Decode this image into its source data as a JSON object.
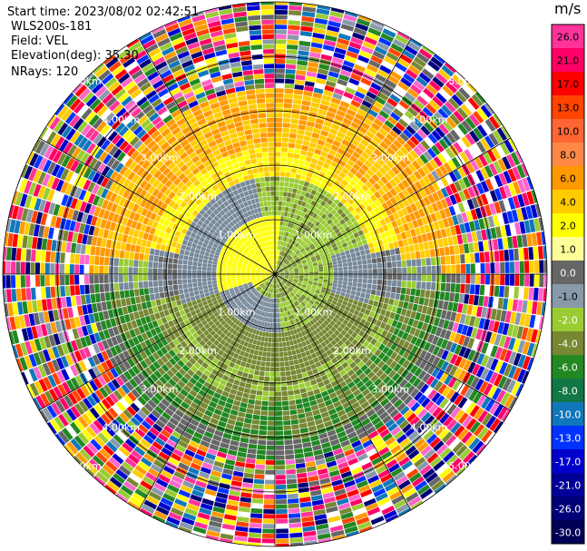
{
  "header": {
    "start_time": "Start time: 2023/08/02 02:42:51",
    "instrument": "WLS200s-181",
    "field": "Field: VEL",
    "elevation": "Elevation(deg): 35.30",
    "nrays": "NRays: 120"
  },
  "colorbar": {
    "unit": "m/s",
    "ticks": [
      "26.0",
      "21.0",
      "17.0",
      "13.0",
      "10.0",
      "8.0",
      "6.0",
      "4.0",
      "2.0",
      "1.0",
      "0.0",
      "-1.0",
      "-2.0",
      "-4.0",
      "-6.0",
      "-8.0",
      "-10.0",
      "-13.0",
      "-17.0",
      "-21.0",
      "-26.0",
      "-30.0"
    ],
    "colors": [
      "#ff3399",
      "#ff0066",
      "#ff0000",
      "#ff4400",
      "#ff6633",
      "#ff8844",
      "#ff9900",
      "#ffcc00",
      "#ffff00",
      "#ffff99",
      "#666666",
      "#8899aa",
      "#99cc33",
      "#778833",
      "#228822",
      "#117744",
      "#1177bb",
      "#0033ff",
      "#0000cc",
      "#000099",
      "#000077",
      "#000055"
    ]
  },
  "range_labels": [
    "1.00km",
    "2.00km",
    "3.00km",
    "4.00km",
    "5.00km"
  ],
  "chart_data": {
    "type": "heatmap",
    "subtype": "PPI polar plot",
    "field": "VEL",
    "units": "m/s",
    "nrays": 120,
    "elevation_deg": 35.3,
    "max_range_km": 5.0,
    "range_rings_km": [
      1,
      2,
      3,
      4,
      5
    ],
    "clim": [
      -30.0,
      26.0
    ],
    "pattern_summary": "Near-field (<2.7 km) shows positive velocities (yellow/orange) to the north-west and north, negative velocities (green/olive) to the south and south-east, and near-zero (grey) in a ring between; beyond ~3.3 km values are noisy/random across the full scale."
  }
}
